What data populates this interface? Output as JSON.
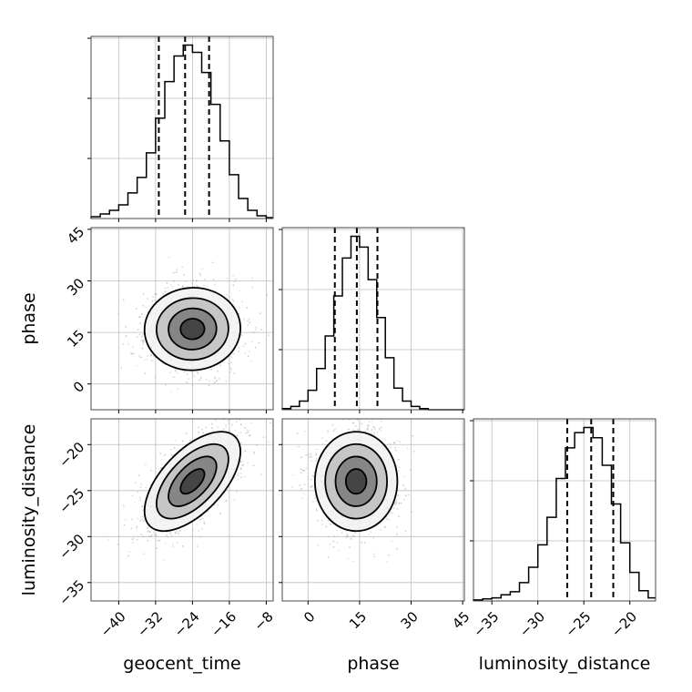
{
  "chart_data": {
    "type": "corner",
    "parameters": [
      "geocent_time",
      "phase",
      "luminosity_distance"
    ],
    "axes": {
      "geocent_time": {
        "label": "geocent_time",
        "range": [
          -46,
          -6.5
        ],
        "ticks": [
          -40,
          -32,
          -24,
          -16,
          -8
        ],
        "tick_labels": [
          "−40",
          "−32",
          "−24",
          "−16",
          "−8"
        ]
      },
      "phase": {
        "label": "phase",
        "range": [
          -7.5,
          45.5
        ],
        "ticks": [
          0,
          15,
          30,
          45
        ],
        "tick_labels": [
          "0",
          "15",
          "30",
          "45"
        ]
      },
      "luminosity_distance": {
        "label": "luminosity_distance",
        "range": [
          -37,
          -17.2
        ],
        "ticks": [
          -35,
          -30,
          -25,
          -20
        ],
        "tick_labels": [
          "−35",
          "−30",
          "−25",
          "−20"
        ]
      }
    },
    "marginals": [
      {
        "param": "geocent_time",
        "bin_edges": [
          -46,
          -44,
          -42,
          -40,
          -38,
          -36,
          -34,
          -32,
          -30,
          -28,
          -26,
          -24,
          -22,
          -20,
          -18,
          -16,
          -14,
          -12,
          -10,
          -8,
          -6
        ],
        "counts": [
          2,
          5,
          9,
          15,
          28,
          45,
          72,
          110,
          150,
          178,
          190,
          182,
          160,
          125,
          85,
          48,
          22,
          9,
          3,
          1
        ],
        "quantiles": [
          -31.3,
          -25.6,
          -20.4
        ]
      },
      {
        "param": "phase",
        "bin_edges": [
          -7.5,
          -5,
          -2.5,
          0,
          2.5,
          5,
          7.5,
          10,
          12.5,
          15,
          17.5,
          20,
          22.5,
          25,
          27.5,
          30,
          32.5,
          35,
          37.5,
          40,
          42.5,
          45,
          47.5
        ],
        "counts": [
          1,
          3,
          8,
          18,
          38,
          68,
          105,
          140,
          160,
          150,
          120,
          85,
          48,
          20,
          8,
          3,
          1,
          0,
          0,
          0,
          0,
          0
        ],
        "quantiles": [
          7.8,
          14.2,
          20.2
        ]
      },
      {
        "param": "luminosity_distance",
        "bin_edges": [
          -37,
          -36,
          -35,
          -34,
          -33,
          -32,
          -31,
          -30,
          -29,
          -28,
          -27,
          -26,
          -25,
          -24,
          -23,
          -22,
          -21,
          -20,
          -19,
          -18,
          -17
        ],
        "counts": [
          1,
          2,
          3,
          6,
          9,
          18,
          33,
          55,
          82,
          120,
          150,
          165,
          170,
          160,
          133,
          95,
          57,
          28,
          10,
          3
        ],
        "quantiles": [
          -26.8,
          -24.2,
          -21.8
        ]
      }
    ],
    "joint": [
      {
        "x": "geocent_time",
        "y": "phase",
        "center": [
          -24,
          16
        ],
        "sigma": [
          5.2,
          6.0
        ],
        "rho": 0.02
      },
      {
        "x": "geocent_time",
        "y": "luminosity_distance",
        "center": [
          -24,
          -24
        ],
        "sigma": [
          5.2,
          2.7
        ],
        "rho": 0.6
      },
      {
        "x": "phase",
        "y": "luminosity_distance",
        "center": [
          14,
          -24
        ],
        "sigma": [
          6.0,
          2.7
        ],
        "rho": 0.0
      }
    ],
    "contour_levels": [
      0.5,
      1.0,
      1.5,
      2.0
    ],
    "colors": {
      "line": "#000000",
      "grid": "#bdbdbd",
      "points": "#9a9a9a"
    }
  }
}
